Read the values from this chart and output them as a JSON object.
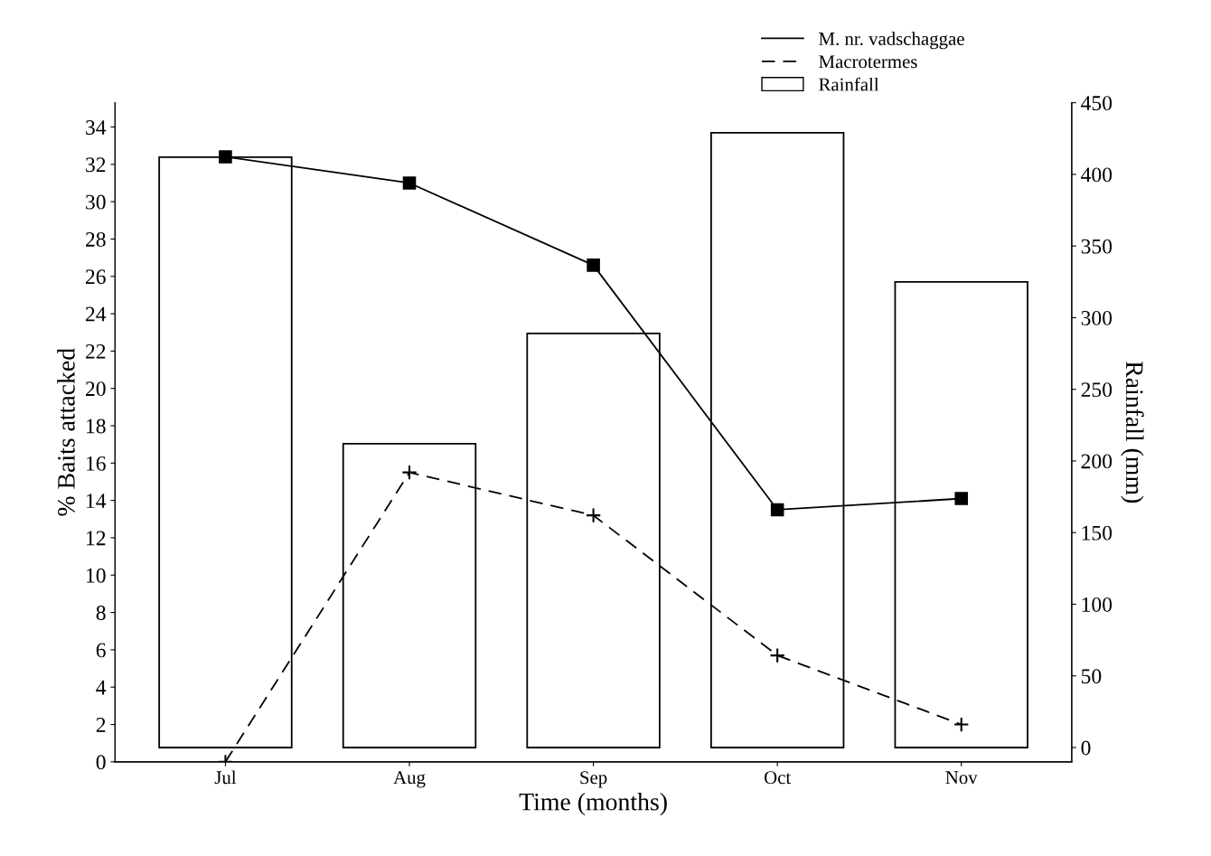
{
  "chart_data": {
    "type": "bar",
    "xlabel": "Time (months)",
    "ylabel": "% Baits attacked",
    "y2label": "Rainfall (mm)",
    "categories": [
      "Jul",
      "Aug",
      "Sep",
      "Oct",
      "Nov"
    ],
    "series": [
      {
        "name": "Rainfall",
        "axis": "y2",
        "color": "#ffffff",
        "values": [
          412,
          212,
          289,
          429,
          325
        ]
      },
      {
        "name": "M. nr. vadschaggae",
        "type": "line",
        "color": "#000000",
        "marker": "square",
        "line_style": "solid",
        "values": [
          32.4,
          31.0,
          26.6,
          13.5,
          14.1
        ]
      },
      {
        "name": "Macrotermes",
        "type": "line",
        "color": "#000000",
        "marker": "cross",
        "line_style": "dashed",
        "values": [
          0,
          15.5,
          13.2,
          5.7,
          2.0
        ]
      }
    ],
    "ylim": [
      0,
      35.3
    ],
    "yticks": [
      0,
      2,
      4,
      6,
      8,
      10,
      12,
      14,
      16,
      18,
      20,
      22,
      24,
      26,
      28,
      30,
      32,
      34
    ],
    "y2lim": [
      -10,
      450
    ],
    "y2ticks": [
      0,
      50,
      100,
      150,
      200,
      250,
      300,
      350,
      400,
      450
    ],
    "grid": false,
    "legend": "top right"
  }
}
